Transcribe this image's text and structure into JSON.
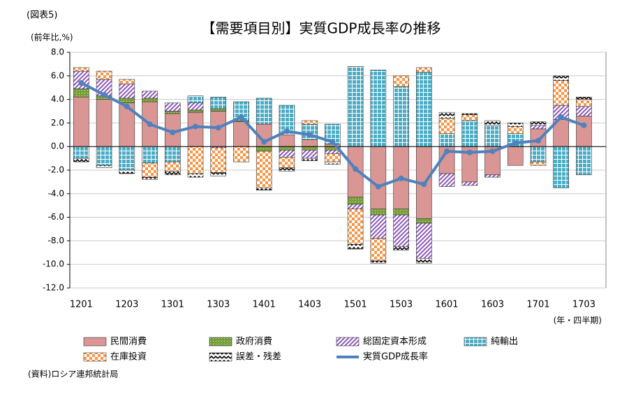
{
  "chart_data": {
    "type": "bar",
    "stacked": true,
    "note": "(図表5)",
    "title": "【需要項目別】実質GDP成長率の推移",
    "y_label": "(前年比,%)",
    "x_label": "(年・四半期)",
    "source": "(資料)ロシア連邦統計局",
    "categories": [
      "1201",
      null,
      "1203",
      null,
      "1301",
      null,
      "1303",
      null,
      "1401",
      null,
      "1403",
      null,
      "1501",
      null,
      "1503",
      null,
      "1601",
      null,
      "1603",
      null,
      "1701",
      null,
      "1703"
    ],
    "ylim": [
      -12,
      8
    ],
    "yticks": [
      {
        "value": 8,
        "label": "8.0"
      },
      {
        "value": 6,
        "label": "6.0"
      },
      {
        "value": 4,
        "label": "4.0"
      },
      {
        "value": 2,
        "label": "2.0"
      },
      {
        "value": 0,
        "label": "0.0"
      },
      {
        "value": -2,
        "label": "-2.0"
      },
      {
        "value": -4,
        "label": "-4.0"
      },
      {
        "value": -6,
        "label": "-6.0"
      },
      {
        "value": -8,
        "label": "-8.0"
      },
      {
        "value": -10,
        "label": "-10.0"
      },
      {
        "value": -12,
        "label": "-12.0"
      }
    ],
    "grid": true,
    "series": [
      {
        "name": "民間消費",
        "type": "bar",
        "pattern": "solid",
        "color": "#d99694",
        "values": [
          4.2,
          4.0,
          3.7,
          3.8,
          2.8,
          2.9,
          3.0,
          2.1,
          1.9,
          1.0,
          0.6,
          0.2,
          -4.3,
          -5.3,
          -5.3,
          -6.1,
          -2.3,
          -3.0,
          -2.4,
          -1.6,
          1.5,
          2.3,
          2.6
        ]
      },
      {
        "name": "政府消費",
        "type": "bar",
        "pattern": "dots",
        "color": "#77a03a",
        "values": [
          0.7,
          0.3,
          0.4,
          0.3,
          0.2,
          0.2,
          0.2,
          0.1,
          -0.4,
          -0.3,
          -0.3,
          -0.3,
          -0.6,
          -0.5,
          -0.5,
          -0.4,
          0,
          0,
          0,
          0,
          0,
          0,
          0
        ]
      },
      {
        "name": "総固定資本形成",
        "type": "bar",
        "pattern": "diagonal",
        "color": "#8a56b8",
        "values": [
          1.5,
          1.4,
          1.2,
          0.6,
          0.7,
          0.6,
          -0.1,
          0,
          0,
          -0.6,
          -0.7,
          -0.3,
          -0.4,
          -2.0,
          -2.7,
          -3.0,
          -1.1,
          -0.3,
          -0.2,
          0,
          0.3,
          1.2,
          0.8
        ]
      },
      {
        "name": "純輸出",
        "type": "bar",
        "pattern": "grid",
        "color": "#4bacc6",
        "values": [
          -1.0,
          -1.6,
          -2.0,
          -1.4,
          -1.3,
          0.6,
          1.0,
          1.6,
          2.2,
          2.5,
          1.3,
          1.7,
          6.8,
          6.5,
          5.1,
          6.3,
          1.1,
          2.2,
          1.8,
          1.1,
          -1.3,
          -3.5,
          -2.4
        ]
      },
      {
        "name": "在庫投資",
        "type": "bar",
        "pattern": "checker",
        "color": "#f79646",
        "values": [
          0.3,
          0.7,
          0.4,
          -1.2,
          -0.8,
          -2.3,
          -2.1,
          -1.3,
          -3.1,
          -0.9,
          0.3,
          -0.7,
          -3.0,
          -1.9,
          0.9,
          0.4,
          1.3,
          0.5,
          0,
          0.6,
          -0.3,
          2.1,
          0.6
        ]
      },
      {
        "name": "誤差・残差",
        "type": "bar",
        "pattern": "zigzag",
        "color": "#000000",
        "values": [
          -0.3,
          -0.2,
          -0.3,
          -0.2,
          -0.3,
          -0.3,
          -0.3,
          0,
          -0.2,
          -0.3,
          -0.2,
          -0.2,
          -0.4,
          -0.2,
          -0.3,
          -0.4,
          0.5,
          0.1,
          0.4,
          0.3,
          0.3,
          0.4,
          0.2
        ]
      },
      {
        "name": "実質GDP成長率",
        "type": "line",
        "color": "#4f81bd",
        "values": [
          5.4,
          4.4,
          3.4,
          1.9,
          1.2,
          1.7,
          1.6,
          2.5,
          0.4,
          1.3,
          1.0,
          0.4,
          -1.9,
          -3.4,
          -2.7,
          -3.2,
          -0.4,
          -0.5,
          -0.4,
          0.3,
          0.5,
          2.5,
          1.8
        ]
      }
    ]
  }
}
